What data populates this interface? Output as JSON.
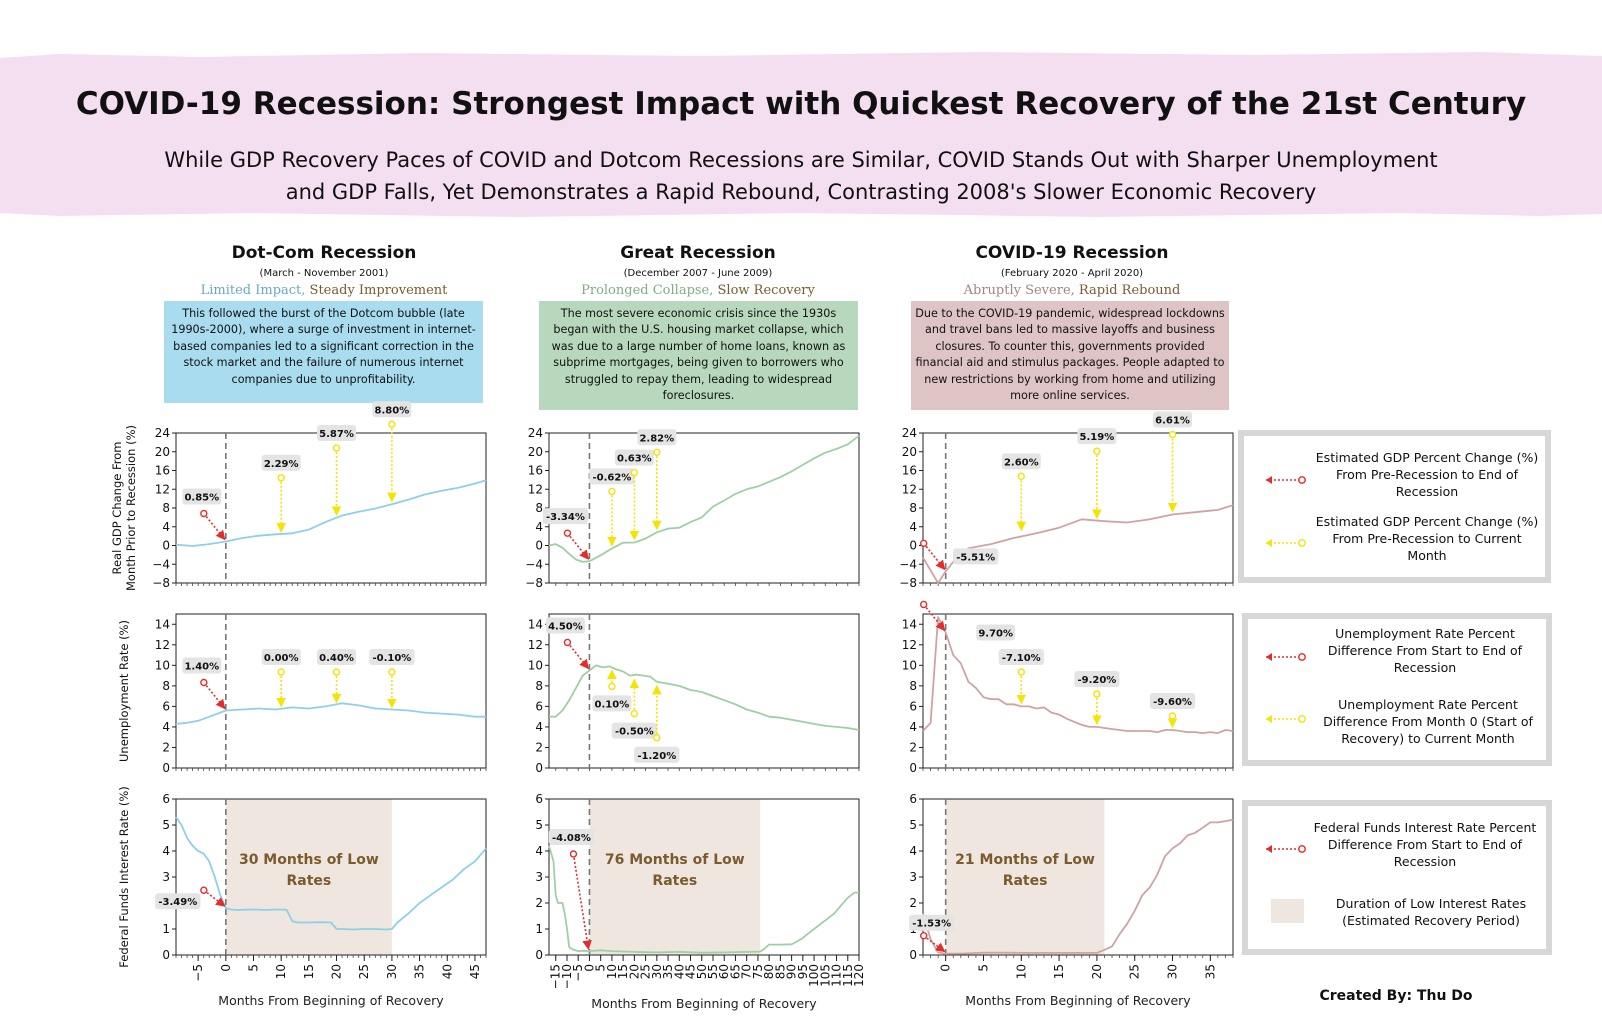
{
  "title": "COVID-19 Recession: Strongest Impact with Quickest Recovery of the 21st Century",
  "subtitle_lines": [
    "While GDP Recovery Paces of COVID and Dotcom Recessions are Similar, COVID Stands Out with Sharper Unemployment",
    "and GDP Falls, Yet Demonstrates a Rapid Rebound, Contrasting 2008's Slower Economic Recovery"
  ],
  "colors": {
    "banner": "#f3dff0",
    "dotcom": "#8ed0e8",
    "great": "#9fcfa5",
    "covid": "#cfa3a3",
    "dotcom_box": "#a9dcef",
    "great_box": "#b7d8bd",
    "covid_box": "#dec4c5",
    "low_rates": "#efe7df",
    "red_arrow": "#e62b2b",
    "yellow_arrow": "#f5e300",
    "tag_muted": "#6aa8c4",
    "tag_dark": "#7b5a2e",
    "great_muted": "#7fae80",
    "covid_muted": "#a08585"
  },
  "columns": [
    {
      "title": "Dot-Com Recession",
      "dates": "(March - November 2001)",
      "tag_a": "Limited Impact,",
      "tag_b": "Steady Improvement",
      "description": "This followed the burst of the Dotcom bubble (late 1990s-2000), where a surge of investment in internet-based companies led to a significant correction in the stock market and the failure of numerous internet companies due to unprofitability."
    },
    {
      "title": "Great Recession",
      "dates": "(December 2007 - June 2009)",
      "tag_a": "Prolonged Collapse,",
      "tag_b": "Slow Recovery",
      "description": "The most severe economic crisis since the 1930s began with the U.S. housing market collapse, which was due to a large number of home loans, known as subprime mortgages, being given to borrowers who struggled to repay them, leading to widespread foreclosures."
    },
    {
      "title": "COVID-19 Recession",
      "dates": "(February 2020 - April 2020)",
      "tag_a": "Abruptly Severe,",
      "tag_b": "Rapid Rebound",
      "description": "Due to the COVID-19 pandemic, widespread lockdowns and travel bans led to massive layoffs and business closures. To counter this, governments provided financial aid and stimulus packages. People adapted to new restrictions by working from home and utilizing more online services."
    }
  ],
  "legends": {
    "gdp": [
      "Estimated GDP Percent Change (%) From Pre-Recession to End of Recession",
      "Estimated GDP Percent Change (%) From Pre-Recession to Current Month"
    ],
    "unemp": [
      "Unemployment Rate Percent Difference From Start to End of Recession",
      "Unemployment Rate Percent Difference From Month 0 (Start of Recovery) to Current Month"
    ],
    "rates": [
      "Federal Funds Interest Rate Percent Difference From Start to End of Recession",
      "Duration of Low Interest Rates (Estimated Recovery Period)"
    ]
  },
  "credit": "Created By: Thu Do",
  "chart_data": [
    {
      "type": "line",
      "panel": "dotcom-gdp",
      "ylabel": "Real GDP Change From Month Prior to Recession (%)",
      "xlim": [
        -9,
        47
      ],
      "ylim": [
        -8,
        24
      ],
      "yticks": [
        -8,
        -4,
        0,
        4,
        8,
        12,
        16,
        20,
        24
      ],
      "ytick_labels": [
        "−8",
        "−4",
        "0",
        "4",
        "8",
        "12",
        "16",
        "20",
        "24"
      ],
      "x": [
        -9,
        -6,
        -3,
        0,
        3,
        6,
        9,
        12,
        15,
        18,
        21,
        24,
        27,
        30,
        33,
        36,
        39,
        42,
        45,
        47
      ],
      "y": [
        0.2,
        -0.1,
        0.3,
        0.85,
        1.6,
        2.1,
        2.4,
        2.6,
        3.4,
        5.0,
        6.4,
        7.2,
        7.9,
        8.8,
        9.8,
        10.9,
        11.7,
        12.3,
        13.2,
        13.9
      ],
      "annotations": [
        {
          "label": "0.85%",
          "x": 0,
          "y": 0.85,
          "kind": "end"
        },
        {
          "label": "2.29%",
          "x": 10,
          "y": 2.29,
          "kind": "current"
        },
        {
          "label": "5.87%",
          "x": 20,
          "y": 5.87,
          "kind": "current"
        },
        {
          "label": "8.80%",
          "x": 30,
          "y": 8.8,
          "kind": "current"
        }
      ]
    },
    {
      "type": "line",
      "panel": "great-gdp",
      "xlim": [
        -18,
        120
      ],
      "ylim": [
        -8,
        24
      ],
      "yticks": [
        -8,
        -4,
        0,
        4,
        8,
        12,
        16,
        20,
        24
      ],
      "ytick_labels": [
        "−8",
        "−4",
        "0",
        "4",
        "8",
        "12",
        "16",
        "20",
        "24"
      ],
      "x": [
        -18,
        -15,
        -12,
        -9,
        -6,
        -3,
        0,
        5,
        10,
        15,
        20,
        25,
        30,
        35,
        40,
        45,
        50,
        55,
        60,
        65,
        70,
        75,
        80,
        85,
        90,
        95,
        100,
        105,
        110,
        115,
        120
      ],
      "y": [
        0,
        0.3,
        -0.5,
        -1.8,
        -3.0,
        -3.5,
        -3.34,
        -2.1,
        -0.62,
        0.6,
        0.63,
        1.5,
        2.82,
        3.6,
        3.8,
        5.0,
        6.0,
        8.3,
        9.6,
        11.0,
        12.0,
        12.6,
        13.6,
        14.6,
        15.8,
        17.2,
        18.6,
        19.8,
        20.6,
        21.6,
        23.4
      ],
      "annotations": [
        {
          "label": "-3.34%",
          "x": 0,
          "y": -3.34,
          "kind": "end"
        },
        {
          "label": "-0.62%",
          "x": 10,
          "y": -0.62,
          "kind": "current"
        },
        {
          "label": "0.63%",
          "x": 20,
          "y": 0.63,
          "kind": "current"
        },
        {
          "label": "2.82%",
          "x": 30,
          "y": 2.82,
          "kind": "current"
        }
      ]
    },
    {
      "type": "line",
      "panel": "covid-gdp",
      "xlim": [
        -3,
        38
      ],
      "ylim": [
        -8,
        24
      ],
      "yticks": [
        -8,
        -4,
        0,
        4,
        8,
        12,
        16,
        20,
        24
      ],
      "ytick_labels": [
        "−8",
        "−4",
        "0",
        "4",
        "8",
        "12",
        "16",
        "20",
        "24"
      ],
      "x": [
        -3,
        -1,
        0,
        1,
        3,
        6,
        9,
        12,
        15,
        18,
        21,
        24,
        27,
        30,
        33,
        36,
        38
      ],
      "y": [
        -2.6,
        -8.0,
        -5.51,
        -3.5,
        -0.6,
        0.3,
        1.6,
        2.6,
        3.8,
        5.6,
        5.19,
        4.9,
        5.6,
        6.61,
        7.1,
        7.6,
        8.6
      ],
      "annotations": [
        {
          "label": "-5.51%",
          "x": 0,
          "y": -5.51,
          "kind": "end"
        },
        {
          "label": "2.60%",
          "x": 10,
          "y": 2.6,
          "kind": "current"
        },
        {
          "label": "5.19%",
          "x": 20,
          "y": 5.19,
          "kind": "current"
        },
        {
          "label": "6.61%",
          "x": 30,
          "y": 6.61,
          "kind": "current"
        }
      ]
    },
    {
      "type": "line",
      "panel": "dotcom-unemp",
      "ylabel": "Unemployment Rate (%)",
      "xlim": [
        -9,
        47
      ],
      "ylim": [
        0,
        15
      ],
      "yticks": [
        0,
        2,
        4,
        6,
        8,
        10,
        12,
        14
      ],
      "ytick_labels": [
        "0",
        "2",
        "4",
        "6",
        "8",
        "10",
        "12",
        "14"
      ],
      "x": [
        -9,
        -7,
        -5,
        -3,
        -1,
        0,
        3,
        6,
        9,
        12,
        15,
        18,
        21,
        24,
        27,
        30,
        33,
        36,
        39,
        42,
        45,
        47
      ],
      "y": [
        4.3,
        4.4,
        4.6,
        5.0,
        5.4,
        5.6,
        5.7,
        5.8,
        5.7,
        5.9,
        5.8,
        6.0,
        6.3,
        6.1,
        5.8,
        5.7,
        5.6,
        5.4,
        5.3,
        5.2,
        5.0,
        5.0
      ],
      "annotations": [
        {
          "label": "1.40%",
          "x": 0,
          "y": 5.6,
          "kind": "end"
        },
        {
          "label": "0.00%",
          "x": 10,
          "y": 5.7,
          "kind": "current"
        },
        {
          "label": "0.40%",
          "x": 20,
          "y": 6.1,
          "kind": "current"
        },
        {
          "label": "-0.10%",
          "x": 30,
          "y": 5.6,
          "kind": "current"
        }
      ]
    },
    {
      "type": "line",
      "panel": "great-unemp",
      "xlim": [
        -18,
        120
      ],
      "ylim": [
        0,
        15
      ],
      "yticks": [
        0,
        2,
        4,
        6,
        8,
        10,
        12,
        14
      ],
      "ytick_labels": [
        "0",
        "2",
        "4",
        "6",
        "8",
        "10",
        "12",
        "14"
      ],
      "x": [
        -18,
        -15,
        -12,
        -9,
        -6,
        -3,
        0,
        3,
        6,
        9,
        12,
        15,
        18,
        21,
        24,
        27,
        30,
        35,
        40,
        45,
        50,
        55,
        60,
        65,
        70,
        75,
        80,
        85,
        90,
        95,
        100,
        105,
        110,
        115,
        120
      ],
      "y": [
        5.0,
        5.0,
        5.6,
        6.6,
        7.8,
        9.0,
        9.5,
        10.0,
        9.8,
        9.9,
        9.6,
        9.4,
        9.0,
        9.1,
        9.0,
        8.9,
        8.4,
        8.2,
        8.0,
        7.6,
        7.4,
        7.0,
        6.6,
        6.2,
        5.7,
        5.4,
        5.0,
        4.9,
        4.7,
        4.5,
        4.3,
        4.1,
        4.0,
        3.9,
        3.7
      ],
      "annotations": [
        {
          "label": "4.50%",
          "x": 0,
          "y": 9.5,
          "kind": "end"
        },
        {
          "label": "0.10%",
          "x": 10,
          "y": 9.9,
          "kind": "current"
        },
        {
          "label": "-0.50%",
          "x": 20,
          "y": 9.0,
          "kind": "current"
        },
        {
          "label": "-1.20%",
          "x": 30,
          "y": 8.4,
          "kind": "current"
        }
      ]
    },
    {
      "type": "line",
      "panel": "covid-unemp",
      "xlim": [
        -3,
        38
      ],
      "ylim": [
        0,
        15
      ],
      "yticks": [
        0,
        2,
        4,
        6,
        8,
        10,
        12,
        14
      ],
      "ytick_labels": [
        "0",
        "2",
        "4",
        "6",
        "8",
        "10",
        "12",
        "14"
      ],
      "x": [
        -3,
        -2,
        -1,
        0,
        1,
        2,
        3,
        4,
        5,
        6,
        7,
        8,
        9,
        10,
        11,
        12,
        13,
        14,
        15,
        16,
        17,
        18,
        19,
        20,
        21,
        22,
        23,
        24,
        25,
        26,
        27,
        28,
        29,
        30,
        31,
        32,
        33,
        34,
        35,
        36,
        37,
        38
      ],
      "y": [
        3.6,
        4.4,
        14.7,
        13.2,
        11.0,
        10.2,
        8.4,
        7.8,
        6.9,
        6.7,
        6.7,
        6.2,
        6.2,
        6.0,
        6.0,
        5.8,
        5.9,
        5.4,
        5.2,
        4.8,
        4.5,
        4.2,
        4.0,
        4.0,
        3.9,
        3.8,
        3.7,
        3.6,
        3.6,
        3.6,
        3.6,
        3.5,
        3.7,
        3.7,
        3.6,
        3.5,
        3.5,
        3.4,
        3.5,
        3.4,
        3.7,
        3.6
      ],
      "annotations": [
        {
          "label": "9.70%",
          "x": 0,
          "y": 13.2,
          "kind": "end"
        },
        {
          "label": "-7.10%",
          "x": 10,
          "y": 6.0,
          "kind": "current"
        },
        {
          "label": "-9.20%",
          "x": 20,
          "y": 4.0,
          "kind": "current"
        },
        {
          "label": "-9.60%",
          "x": 30,
          "y": 3.7,
          "kind": "current"
        }
      ]
    },
    {
      "type": "line",
      "panel": "dotcom-rates",
      "ylabel": "Federal Funds Interest Rate (%)",
      "xlabel": "Months From Beginning of Recovery",
      "xlim": [
        -9,
        47
      ],
      "ylim": [
        0,
        6
      ],
      "yticks": [
        0,
        1,
        2,
        3,
        4,
        5,
        6
      ],
      "ytick_labels": [
        "0",
        "1",
        "2",
        "3",
        "4",
        "5",
        "6"
      ],
      "xticks": [
        -5,
        0,
        5,
        10,
        15,
        20,
        25,
        30,
        35,
        40,
        45
      ],
      "xtick_labels": [
        "−5",
        "0",
        "5",
        "10",
        "15",
        "20",
        "25",
        "30",
        "35",
        "40",
        "45"
      ],
      "x": [
        -9,
        -8,
        -7,
        -6,
        -5,
        -4,
        -3,
        -2,
        -1,
        0,
        1,
        2,
        3,
        5,
        7,
        9,
        11,
        12,
        13,
        15,
        17,
        19,
        20,
        21,
        23,
        25,
        27,
        29,
        30,
        31,
        33,
        35,
        37,
        39,
        41,
        43,
        45,
        47
      ],
      "y": [
        5.3,
        5.0,
        4.5,
        4.2,
        4.0,
        3.9,
        3.6,
        3.0,
        2.3,
        1.8,
        1.75,
        1.73,
        1.74,
        1.75,
        1.73,
        1.75,
        1.74,
        1.3,
        1.25,
        1.25,
        1.26,
        1.25,
        1.0,
        1.0,
        0.98,
        1.0,
        1.0,
        0.98,
        1.0,
        1.25,
        1.6,
        2.0,
        2.3,
        2.6,
        2.9,
        3.3,
        3.6,
        4.1
      ],
      "annotations": [
        {
          "label": "-3.49%",
          "x": 0,
          "y": 1.8,
          "kind": "end"
        }
      ],
      "shaded": {
        "x0": 0,
        "x1": 30,
        "label_lines": [
          "30 Months of Low",
          "Rates"
        ]
      }
    },
    {
      "type": "line",
      "panel": "great-rates",
      "xlabel": "Months From Beginning of Recovery",
      "xlim": [
        -18,
        120
      ],
      "ylim": [
        0,
        6
      ],
      "yticks": [
        0,
        1,
        2,
        3,
        4,
        5,
        6
      ],
      "ytick_labels": [
        "0",
        "1",
        "2",
        "3",
        "4",
        "5",
        "6"
      ],
      "xticks": [
        -15,
        -10,
        -5,
        0,
        5,
        10,
        15,
        20,
        25,
        30,
        35,
        40,
        45,
        50,
        55,
        60,
        65,
        70,
        75,
        80,
        85,
        90,
        95,
        100,
        105,
        110,
        115,
        120
      ],
      "xtick_labels": [
        "−15",
        "−10",
        "−5",
        "0",
        "5",
        "10",
        "15",
        "20",
        "25",
        "30",
        "35",
        "40",
        "45",
        "50",
        "55",
        "60",
        "65",
        "70",
        "75",
        "80",
        "85",
        "90",
        "95",
        "100",
        "105",
        "110",
        "115",
        "120"
      ],
      "x": [
        -18,
        -16,
        -15,
        -14,
        -12,
        -11,
        -10,
        -9,
        -7,
        -5,
        -3,
        0,
        5,
        10,
        20,
        30,
        40,
        50,
        60,
        70,
        76,
        78,
        80,
        85,
        90,
        92,
        95,
        97,
        100,
        103,
        106,
        109,
        112,
        115,
        118,
        120
      ],
      "y": [
        4.2,
        3.6,
        2.3,
        2.0,
        2.0,
        1.6,
        1.0,
        0.3,
        0.2,
        0.15,
        0.16,
        0.15,
        0.18,
        0.15,
        0.12,
        0.1,
        0.12,
        0.09,
        0.1,
        0.12,
        0.13,
        0.25,
        0.4,
        0.4,
        0.41,
        0.5,
        0.65,
        0.8,
        1.0,
        1.2,
        1.4,
        1.6,
        1.9,
        2.2,
        2.4,
        2.4
      ],
      "annotations": [
        {
          "label": "-4.08%",
          "x": 0,
          "y": 0.15,
          "kind": "end"
        }
      ],
      "shaded": {
        "x0": 0,
        "x1": 76,
        "label_lines": [
          "76 Months of Low",
          "Rates"
        ]
      }
    },
    {
      "type": "line",
      "panel": "covid-rates",
      "xlabel": "Months From Beginning of Recovery",
      "xlim": [
        -3,
        38
      ],
      "ylim": [
        0,
        6
      ],
      "yticks": [
        0,
        1,
        2,
        3,
        4,
        5,
        6
      ],
      "ytick_labels": [
        "0",
        "1",
        "2",
        "3",
        "4",
        "5",
        "6"
      ],
      "xticks": [
        0,
        5,
        10,
        15,
        20,
        25,
        30,
        35
      ],
      "xtick_labels": [
        "0",
        "5",
        "10",
        "15",
        "20",
        "25",
        "30",
        "35"
      ],
      "x": [
        -3,
        -2,
        -1,
        0,
        2,
        5,
        8,
        11,
        14,
        17,
        20,
        21,
        22,
        23,
        24,
        25,
        26,
        27,
        28,
        29,
        30,
        31,
        32,
        33,
        34,
        35,
        36,
        37,
        38
      ],
      "y": [
        1.6,
        0.6,
        0.1,
        0.05,
        0.05,
        0.09,
        0.09,
        0.08,
        0.08,
        0.08,
        0.08,
        0.2,
        0.33,
        0.8,
        1.2,
        1.7,
        2.3,
        2.6,
        3.1,
        3.8,
        4.1,
        4.3,
        4.6,
        4.7,
        4.9,
        5.1,
        5.1,
        5.15,
        5.2
      ],
      "annotations": [
        {
          "label": "-1.53%",
          "x": 0,
          "y": 0.05,
          "kind": "end"
        }
      ],
      "shaded": {
        "x0": 0,
        "x1": 21,
        "label_lines": [
          "21 Months of Low",
          "Rates"
        ]
      }
    }
  ]
}
